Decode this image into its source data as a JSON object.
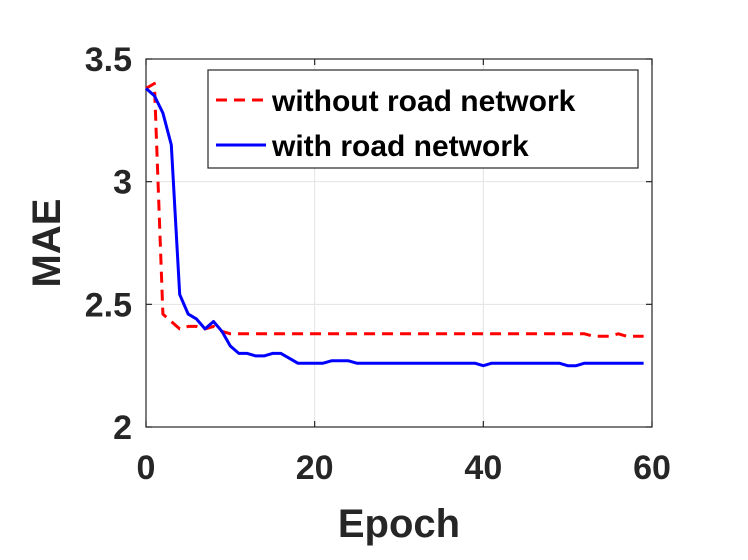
{
  "chart_data": {
    "type": "line",
    "xlabel": "Epoch",
    "ylabel": "MAE",
    "xlim": [
      0,
      60
    ],
    "ylim": [
      2,
      3.5
    ],
    "x_ticks": [
      "0",
      "20",
      "40",
      "60"
    ],
    "y_ticks": [
      "2",
      "2.5",
      "3",
      "3.5"
    ],
    "grid": true,
    "legend_position": "top-right",
    "series": [
      {
        "name": "without road network",
        "color": "#ff0000",
        "dash": "dashed",
        "x": [
          0,
          1,
          2,
          3,
          4,
          5,
          6,
          7,
          8,
          9,
          10,
          11,
          12,
          13,
          14,
          15,
          16,
          17,
          18,
          19,
          20,
          21,
          22,
          23,
          24,
          25,
          26,
          27,
          28,
          29,
          30,
          31,
          32,
          33,
          34,
          35,
          36,
          37,
          38,
          39,
          40,
          41,
          42,
          43,
          44,
          45,
          46,
          47,
          48,
          49,
          50,
          51,
          52,
          53,
          54,
          55,
          56,
          57,
          58,
          59
        ],
        "y": [
          3.38,
          3.4,
          2.46,
          2.43,
          2.4,
          2.41,
          2.41,
          2.4,
          2.41,
          2.39,
          2.38,
          2.38,
          2.38,
          2.38,
          2.38,
          2.38,
          2.38,
          2.38,
          2.38,
          2.38,
          2.38,
          2.38,
          2.38,
          2.38,
          2.38,
          2.38,
          2.38,
          2.38,
          2.38,
          2.38,
          2.38,
          2.38,
          2.38,
          2.38,
          2.38,
          2.38,
          2.38,
          2.38,
          2.38,
          2.38,
          2.38,
          2.38,
          2.38,
          2.38,
          2.38,
          2.38,
          2.38,
          2.38,
          2.38,
          2.38,
          2.38,
          2.38,
          2.38,
          2.37,
          2.37,
          2.37,
          2.38,
          2.37,
          2.37,
          2.37
        ]
      },
      {
        "name": "with road network",
        "color": "#0000ff",
        "dash": "solid",
        "x": [
          0,
          1,
          2,
          3,
          4,
          5,
          6,
          7,
          8,
          9,
          10,
          11,
          12,
          13,
          14,
          15,
          16,
          17,
          18,
          19,
          20,
          21,
          22,
          23,
          24,
          25,
          26,
          27,
          28,
          29,
          30,
          31,
          32,
          33,
          34,
          35,
          36,
          37,
          38,
          39,
          40,
          41,
          42,
          43,
          44,
          45,
          46,
          47,
          48,
          49,
          50,
          51,
          52,
          53,
          54,
          55,
          56,
          57,
          58,
          59
        ],
        "y": [
          3.38,
          3.35,
          3.28,
          3.15,
          2.54,
          2.46,
          2.44,
          2.4,
          2.43,
          2.39,
          2.33,
          2.3,
          2.3,
          2.29,
          2.29,
          2.3,
          2.3,
          2.28,
          2.26,
          2.26,
          2.26,
          2.26,
          2.27,
          2.27,
          2.27,
          2.26,
          2.26,
          2.26,
          2.26,
          2.26,
          2.26,
          2.26,
          2.26,
          2.26,
          2.26,
          2.26,
          2.26,
          2.26,
          2.26,
          2.26,
          2.25,
          2.26,
          2.26,
          2.26,
          2.26,
          2.26,
          2.26,
          2.26,
          2.26,
          2.26,
          2.25,
          2.25,
          2.26,
          2.26,
          2.26,
          2.26,
          2.26,
          2.26,
          2.26,
          2.26
        ]
      }
    ]
  }
}
